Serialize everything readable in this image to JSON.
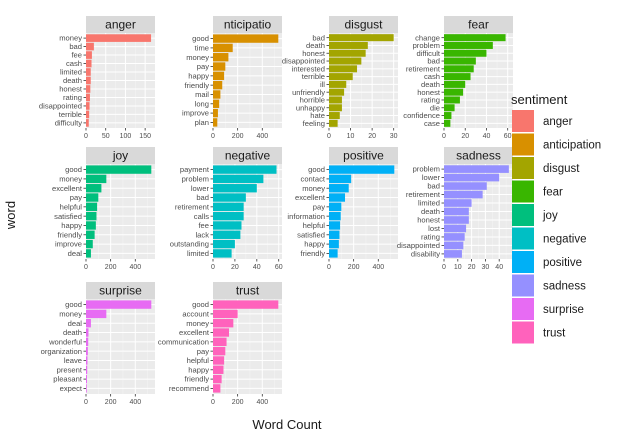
{
  "chart_data": {
    "type": "bar",
    "orientation": "horizontal",
    "xlabel": "Word Count",
    "ylabel": "word",
    "grid": true,
    "legend": {
      "title": "sentiment",
      "position": "right",
      "entries": [
        {
          "name": "anger",
          "color": "#F8766D"
        },
        {
          "name": "anticipation",
          "color": "#D89000"
        },
        {
          "name": "disgust",
          "color": "#A3A500"
        },
        {
          "name": "fear",
          "color": "#39B600"
        },
        {
          "name": "joy",
          "color": "#00BF7D"
        },
        {
          "name": "negative",
          "color": "#00BFC4"
        },
        {
          "name": "positive",
          "color": "#00B0F6"
        },
        {
          "name": "sadness",
          "color": "#9590FF"
        },
        {
          "name": "surprise",
          "color": "#E76BF3"
        },
        {
          "name": "trust",
          "color": "#FF62BC"
        }
      ]
    },
    "facets": [
      {
        "name": "anger",
        "strip_label": "anger",
        "color": "#F8766D",
        "xlim": [
          0,
          175
        ],
        "xticks": [
          0,
          50,
          100,
          150
        ],
        "words": [
          "money",
          "bad",
          "fee",
          "cash",
          "limited",
          "death",
          "honest",
          "rating",
          "disappointed",
          "terrible",
          "difficulty"
        ],
        "values": [
          165,
          20,
          15,
          14,
          12,
          12,
          11,
          10,
          9,
          8,
          7
        ]
      },
      {
        "name": "anticipation",
        "strip_label": "nticipatio",
        "color": "#D89000",
        "xlim": [
          0,
          560
        ],
        "xticks": [
          0,
          200,
          400
        ],
        "words": [
          "good",
          "time",
          "money",
          "pay",
          "happy",
          "friendly",
          "mail",
          "long",
          "improve",
          "plan"
        ],
        "values": [
          530,
          160,
          125,
          100,
          90,
          75,
          60,
          50,
          40,
          35
        ]
      },
      {
        "name": "disgust",
        "strip_label": "disgust",
        "color": "#A3A500",
        "xlim": [
          0,
          32
        ],
        "xticks": [
          0,
          10,
          20,
          30
        ],
        "words": [
          "bad",
          "death",
          "honest",
          "disappointed",
          "interested",
          "terrible",
          "ill",
          "unfriendly",
          "horrible",
          "unhappy",
          "hate",
          "feeling"
        ],
        "values": [
          30,
          18,
          17,
          15,
          13,
          11,
          8,
          7,
          6,
          6,
          5,
          4
        ]
      },
      {
        "name": "fear",
        "strip_label": "fear",
        "color": "#39B600",
        "xlim": [
          0,
          65
        ],
        "xticks": [
          0,
          20,
          40,
          60
        ],
        "words": [
          "change",
          "problem",
          "difficult",
          "bad",
          "retirement",
          "cash",
          "death",
          "honest",
          "rating",
          "die",
          "confidence",
          "case"
        ],
        "values": [
          58,
          46,
          40,
          30,
          28,
          25,
          20,
          18,
          15,
          10,
          7,
          6
        ]
      },
      {
        "name": "joy",
        "strip_label": "joy",
        "color": "#00BF7D",
        "xlim": [
          0,
          560
        ],
        "xticks": [
          0,
          200,
          400
        ],
        "words": [
          "good",
          "money",
          "excellent",
          "pay",
          "helpful",
          "satisfied",
          "happy",
          "friendly",
          "improve",
          "deal"
        ],
        "values": [
          530,
          165,
          125,
          100,
          90,
          85,
          80,
          70,
          55,
          40
        ]
      },
      {
        "name": "negative",
        "strip_label": "negative",
        "color": "#00BFC4",
        "xlim": [
          0,
          63
        ],
        "xticks": [
          0,
          20,
          40,
          60
        ],
        "words": [
          "payment",
          "problem",
          "lower",
          "bad",
          "retirement",
          "calls",
          "fee",
          "lack",
          "outstanding",
          "limited"
        ],
        "values": [
          58,
          46,
          40,
          30,
          28,
          28,
          26,
          25,
          20,
          17
        ]
      },
      {
        "name": "positive",
        "strip_label": "positive",
        "color": "#00B0F6",
        "xlim": [
          0,
          560
        ],
        "xticks": [
          0,
          200,
          400
        ],
        "words": [
          "good",
          "contact",
          "money",
          "excellent",
          "pay",
          "information",
          "helpful",
          "satisfied",
          "happy",
          "friendly"
        ],
        "values": [
          530,
          180,
          160,
          130,
          100,
          95,
          90,
          85,
          80,
          70
        ]
      },
      {
        "name": "sadness",
        "strip_label": "sadness",
        "color": "#9590FF",
        "xlim": [
          0,
          50
        ],
        "xticks": [
          0,
          10,
          20,
          30,
          40
        ],
        "words": [
          "problem",
          "lower",
          "bad",
          "retirement",
          "limited",
          "death",
          "honest",
          "lost",
          "rating",
          "disappointed",
          "disability"
        ],
        "values": [
          47,
          40,
          31,
          28,
          20,
          18,
          18,
          16,
          15,
          14,
          13
        ]
      },
      {
        "name": "surprise",
        "strip_label": "surprise",
        "color": "#E76BF3",
        "xlim": [
          0,
          560
        ],
        "xticks": [
          0,
          200,
          400
        ],
        "words": [
          "good",
          "money",
          "deal",
          "death",
          "wonderful",
          "organization",
          "leave",
          "present",
          "pleasant",
          "expect"
        ],
        "values": [
          530,
          165,
          40,
          20,
          18,
          15,
          12,
          10,
          8,
          6
        ]
      },
      {
        "name": "trust",
        "strip_label": "trust",
        "color": "#FF62BC",
        "xlim": [
          0,
          560
        ],
        "xticks": [
          0,
          200,
          400
        ],
        "words": [
          "good",
          "account",
          "money",
          "excellent",
          "communication",
          "pay",
          "helpful",
          "happy",
          "friendly",
          "recommend"
        ],
        "values": [
          530,
          200,
          165,
          130,
          110,
          100,
          90,
          85,
          70,
          60
        ]
      }
    ]
  }
}
